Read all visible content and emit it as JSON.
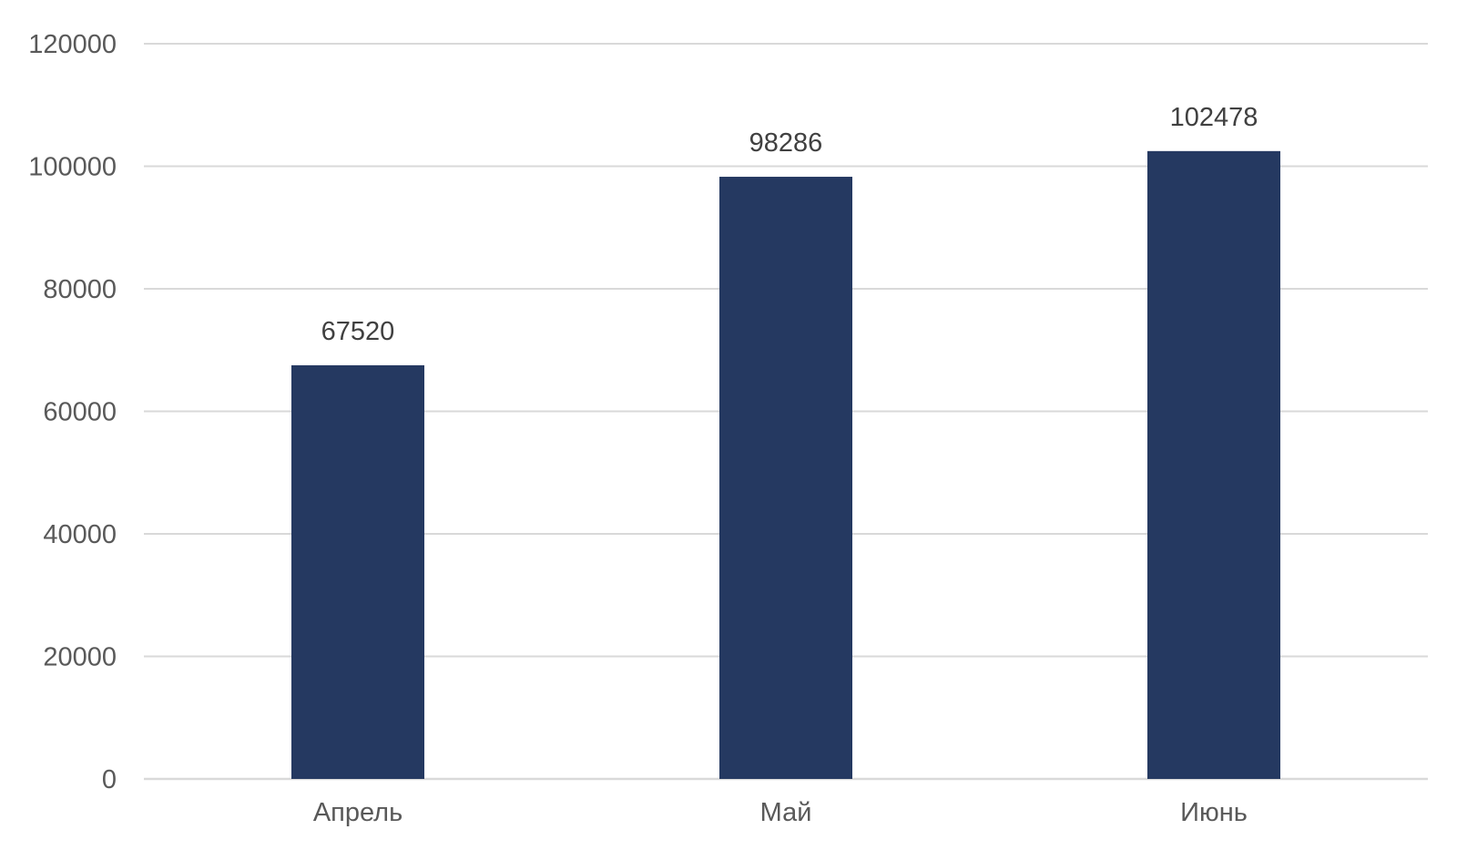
{
  "colors": {
    "bar": "#253961",
    "gridline": "#d9d9d9",
    "tick_text": "#595959",
    "data_label_text": "#404040",
    "background": "#ffffff"
  },
  "chart_data": {
    "type": "bar",
    "categories": [
      "Апрель",
      "Май",
      "Июнь"
    ],
    "values": [
      67520,
      98286,
      102478
    ],
    "data_labels": [
      "67520",
      "98286",
      "102478"
    ],
    "y_ticks": [
      "0",
      "20000",
      "40000",
      "60000",
      "80000",
      "100000",
      "120000"
    ],
    "ylim": [
      0,
      120000
    ],
    "grid": true,
    "legend": "none"
  }
}
